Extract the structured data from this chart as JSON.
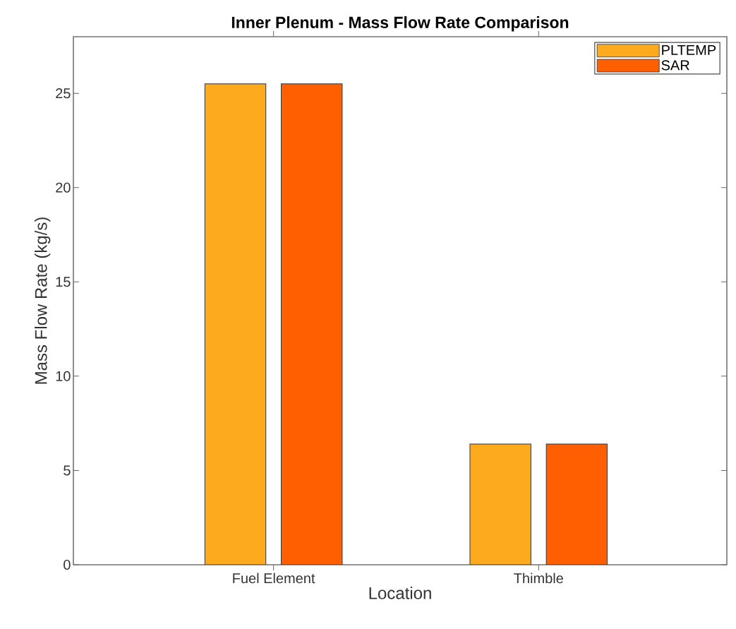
{
  "chart_data": {
    "type": "bar",
    "title": "Inner Plenum - Mass Flow Rate Comparison",
    "xlabel": "Location",
    "ylabel": "Mass Flow Rate (kg/s)",
    "categories": [
      "Fuel Element",
      "Thimble"
    ],
    "series": [
      {
        "name": "PLTEMP",
        "color": "#fdaa1f",
        "values": [
          25.5,
          6.4
        ]
      },
      {
        "name": "SAR",
        "color": "#ff5f00",
        "values": [
          25.5,
          6.4
        ]
      }
    ],
    "ylim": [
      0,
      28
    ],
    "yticks": [
      0,
      5,
      10,
      15,
      20,
      25
    ],
    "grid": false,
    "legend": "top right"
  }
}
